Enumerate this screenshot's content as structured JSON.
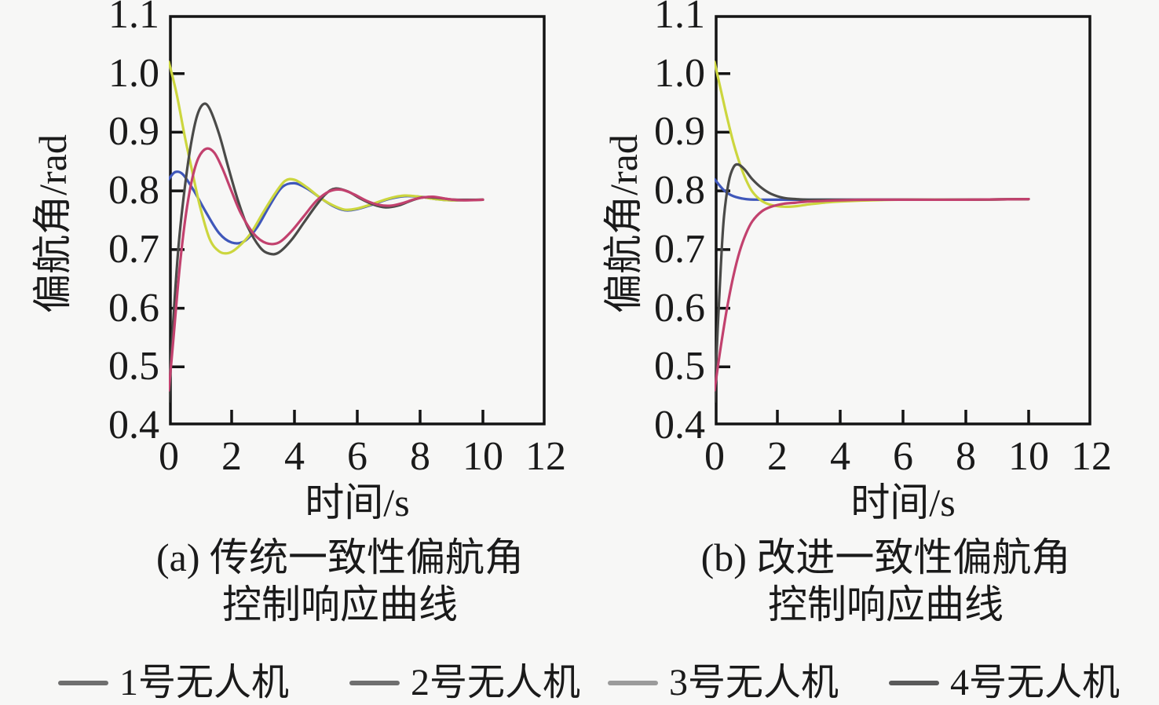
{
  "figure": {
    "background": "#f7f7f6",
    "axis_color": "#141414"
  },
  "legend": {
    "items": [
      {
        "label": "1号无人机",
        "swatch_color": "#6f6f6f",
        "series_color": "#3f57ba"
      },
      {
        "label": "2号无人机",
        "swatch_color": "#6f6f6f",
        "series_color": "#ccd63e"
      },
      {
        "label": "3号无人机",
        "swatch_color": "#9b9b9b",
        "series_color": "#c2416e"
      },
      {
        "label": "4号无人机",
        "swatch_color": "#5a5a5a",
        "series_color": "#4a4a48"
      }
    ]
  },
  "chart_data": [
    {
      "type": "line",
      "caption_line1": "(a) 传统一致性偏航角",
      "caption_line2": "控制响应曲线",
      "xlabel": "时间/s",
      "ylabel": "偏航角/rad",
      "xlim": [
        0,
        12
      ],
      "ylim": [
        0.4,
        1.1
      ],
      "grid": false,
      "legend_position": "bottom-shared",
      "settle_value": 0.785,
      "x_ticks": [
        0,
        2,
        4,
        6,
        8,
        10,
        12
      ],
      "y_ticks": [
        1.1,
        1.0,
        0.9,
        0.8,
        0.7,
        0.6,
        0.5,
        0.4
      ],
      "x_tick_labels": [
        "0",
        "2",
        "4",
        "6",
        "8",
        "10",
        "12"
      ],
      "y_tick_labels": [
        "1.1",
        "1.0",
        "0.9",
        "0.8",
        "0.7",
        "0.6",
        "0.5",
        "0.4"
      ],
      "series": [
        {
          "name": "1号无人机",
          "color": "#3f57ba",
          "points": [
            [
              0,
              0.82
            ],
            [
              0.2,
              0.832
            ],
            [
              0.45,
              0.828
            ],
            [
              0.8,
              0.8
            ],
            [
              1.2,
              0.762
            ],
            [
              1.6,
              0.728
            ],
            [
              2.0,
              0.712
            ],
            [
              2.4,
              0.714
            ],
            [
              2.8,
              0.737
            ],
            [
              3.2,
              0.774
            ],
            [
              3.6,
              0.806
            ],
            [
              4.0,
              0.813
            ],
            [
              4.4,
              0.804
            ],
            [
              4.8,
              0.789
            ],
            [
              5.2,
              0.775
            ],
            [
              5.6,
              0.767
            ],
            [
              6.0,
              0.769
            ],
            [
              6.5,
              0.777
            ],
            [
              7.0,
              0.786
            ],
            [
              7.5,
              0.791
            ],
            [
              8.0,
              0.79
            ],
            [
              8.5,
              0.786
            ],
            [
              9.0,
              0.784
            ],
            [
              10,
              0.785
            ]
          ]
        },
        {
          "name": "2号无人机",
          "color": "#ccd63e",
          "points": [
            [
              0,
              1.02
            ],
            [
              0.25,
              0.965
            ],
            [
              0.5,
              0.895
            ],
            [
              0.75,
              0.832
            ],
            [
              1.0,
              0.772
            ],
            [
              1.3,
              0.718
            ],
            [
              1.6,
              0.697
            ],
            [
              1.9,
              0.694
            ],
            [
              2.2,
              0.704
            ],
            [
              2.6,
              0.727
            ],
            [
              3.0,
              0.763
            ],
            [
              3.4,
              0.797
            ],
            [
              3.7,
              0.817
            ],
            [
              4.0,
              0.819
            ],
            [
              4.4,
              0.806
            ],
            [
              4.8,
              0.789
            ],
            [
              5.2,
              0.776
            ],
            [
              5.6,
              0.768
            ],
            [
              6.0,
              0.77
            ],
            [
              6.5,
              0.778
            ],
            [
              7.0,
              0.787
            ],
            [
              7.5,
              0.792
            ],
            [
              8.0,
              0.79
            ],
            [
              8.5,
              0.786
            ],
            [
              9.0,
              0.784
            ],
            [
              10,
              0.785
            ]
          ]
        },
        {
          "name": "3号无人机",
          "color": "#c2416e",
          "points": [
            [
              0,
              0.46
            ],
            [
              0.15,
              0.55
            ],
            [
              0.35,
              0.672
            ],
            [
              0.55,
              0.762
            ],
            [
              0.75,
              0.822
            ],
            [
              0.95,
              0.857
            ],
            [
              1.2,
              0.872
            ],
            [
              1.45,
              0.865
            ],
            [
              1.7,
              0.839
            ],
            [
              2.0,
              0.799
            ],
            [
              2.3,
              0.761
            ],
            [
              2.7,
              0.727
            ],
            [
              3.1,
              0.711
            ],
            [
              3.5,
              0.712
            ],
            [
              3.9,
              0.731
            ],
            [
              4.3,
              0.757
            ],
            [
              4.7,
              0.783
            ],
            [
              5.1,
              0.799
            ],
            [
              5.5,
              0.802
            ],
            [
              5.9,
              0.794
            ],
            [
              6.3,
              0.783
            ],
            [
              6.7,
              0.776
            ],
            [
              7.1,
              0.775
            ],
            [
              7.5,
              0.78
            ],
            [
              7.9,
              0.787
            ],
            [
              8.4,
              0.79
            ],
            [
              8.9,
              0.786
            ],
            [
              9.4,
              0.784
            ],
            [
              10,
              0.785
            ]
          ]
        },
        {
          "name": "4号无人机",
          "color": "#4a4a48",
          "points": [
            [
              0,
              0.44
            ],
            [
              0.12,
              0.56
            ],
            [
              0.3,
              0.7
            ],
            [
              0.5,
              0.802
            ],
            [
              0.7,
              0.878
            ],
            [
              0.9,
              0.928
            ],
            [
              1.1,
              0.948
            ],
            [
              1.3,
              0.94
            ],
            [
              1.6,
              0.897
            ],
            [
              1.9,
              0.839
            ],
            [
              2.2,
              0.784
            ],
            [
              2.5,
              0.74
            ],
            [
              2.9,
              0.704
            ],
            [
              3.2,
              0.693
            ],
            [
              3.5,
              0.695
            ],
            [
              3.9,
              0.716
            ],
            [
              4.3,
              0.746
            ],
            [
              4.7,
              0.776
            ],
            [
              5.0,
              0.795
            ],
            [
              5.3,
              0.804
            ],
            [
              5.7,
              0.799
            ],
            [
              6.1,
              0.787
            ],
            [
              6.5,
              0.777
            ],
            [
              6.9,
              0.772
            ],
            [
              7.3,
              0.775
            ],
            [
              7.7,
              0.783
            ],
            [
              8.1,
              0.789
            ],
            [
              8.6,
              0.788
            ],
            [
              9.1,
              0.785
            ],
            [
              10,
              0.785
            ]
          ]
        }
      ]
    },
    {
      "type": "line",
      "caption_line1": "(b) 改进一致性偏航角",
      "caption_line2": "控制响应曲线",
      "xlabel": "时间/s",
      "ylabel": "偏航角/rad",
      "xlim": [
        0,
        12
      ],
      "ylim": [
        0.4,
        1.1
      ],
      "grid": false,
      "legend_position": "bottom-shared",
      "settle_value": 0.785,
      "x_ticks": [
        0,
        2,
        4,
        6,
        8,
        10,
        12
      ],
      "y_ticks": [
        1.1,
        1.0,
        0.9,
        0.8,
        0.7,
        0.6,
        0.5,
        0.4
      ],
      "x_tick_labels": [
        "0",
        "2",
        "4",
        "6",
        "8",
        "10",
        "12"
      ],
      "y_tick_labels": [
        "1.1",
        "1.0",
        "0.9",
        "0.8",
        "0.7",
        "0.6",
        "0.5",
        "0.4"
      ],
      "series": [
        {
          "name": "1号无人机",
          "color": "#3f57ba",
          "points": [
            [
              0,
              0.82
            ],
            [
              0.3,
              0.801
            ],
            [
              0.6,
              0.791
            ],
            [
              1.0,
              0.786
            ],
            [
              1.5,
              0.785
            ],
            [
              2.5,
              0.785
            ],
            [
              4,
              0.785
            ],
            [
              6,
              0.785
            ],
            [
              8,
              0.785
            ],
            [
              10,
              0.786
            ]
          ]
        },
        {
          "name": "2号无人机",
          "color": "#ccd63e",
          "points": [
            [
              0,
              1.02
            ],
            [
              0.2,
              0.972
            ],
            [
              0.4,
              0.925
            ],
            [
              0.6,
              0.882
            ],
            [
              0.8,
              0.847
            ],
            [
              1.0,
              0.819
            ],
            [
              1.2,
              0.799
            ],
            [
              1.5,
              0.783
            ],
            [
              1.8,
              0.776
            ],
            [
              2.2,
              0.773
            ],
            [
              2.6,
              0.774
            ],
            [
              3.0,
              0.777
            ],
            [
              3.5,
              0.78
            ],
            [
              4.0,
              0.782
            ],
            [
              5.0,
              0.784
            ],
            [
              6.0,
              0.785
            ],
            [
              8.0,
              0.785
            ],
            [
              10,
              0.786
            ]
          ]
        },
        {
          "name": "3号无人机",
          "color": "#c2416e",
          "points": [
            [
              0,
              0.46
            ],
            [
              0.2,
              0.535
            ],
            [
              0.4,
              0.601
            ],
            [
              0.6,
              0.655
            ],
            [
              0.8,
              0.697
            ],
            [
              1.0,
              0.727
            ],
            [
              1.2,
              0.748
            ],
            [
              1.5,
              0.765
            ],
            [
              1.8,
              0.773
            ],
            [
              2.2,
              0.778
            ],
            [
              2.6,
              0.78
            ],
            [
              3.0,
              0.782
            ],
            [
              3.5,
              0.783
            ],
            [
              4.0,
              0.784
            ],
            [
              5.0,
              0.785
            ],
            [
              6.0,
              0.785
            ],
            [
              8.0,
              0.785
            ],
            [
              10,
              0.786
            ]
          ]
        },
        {
          "name": "4号无人机",
          "color": "#4a4a48",
          "points": [
            [
              0,
              0.44
            ],
            [
              0.1,
              0.565
            ],
            [
              0.2,
              0.672
            ],
            [
              0.3,
              0.756
            ],
            [
              0.45,
              0.815
            ],
            [
              0.6,
              0.84
            ],
            [
              0.75,
              0.845
            ],
            [
              0.95,
              0.837
            ],
            [
              1.2,
              0.82
            ],
            [
              1.5,
              0.805
            ],
            [
              1.8,
              0.795
            ],
            [
              2.2,
              0.788
            ],
            [
              2.6,
              0.786
            ],
            [
              3.0,
              0.785
            ],
            [
              4.0,
              0.785
            ],
            [
              6.0,
              0.785
            ],
            [
              8.0,
              0.785
            ],
            [
              10,
              0.786
            ]
          ]
        }
      ]
    }
  ]
}
